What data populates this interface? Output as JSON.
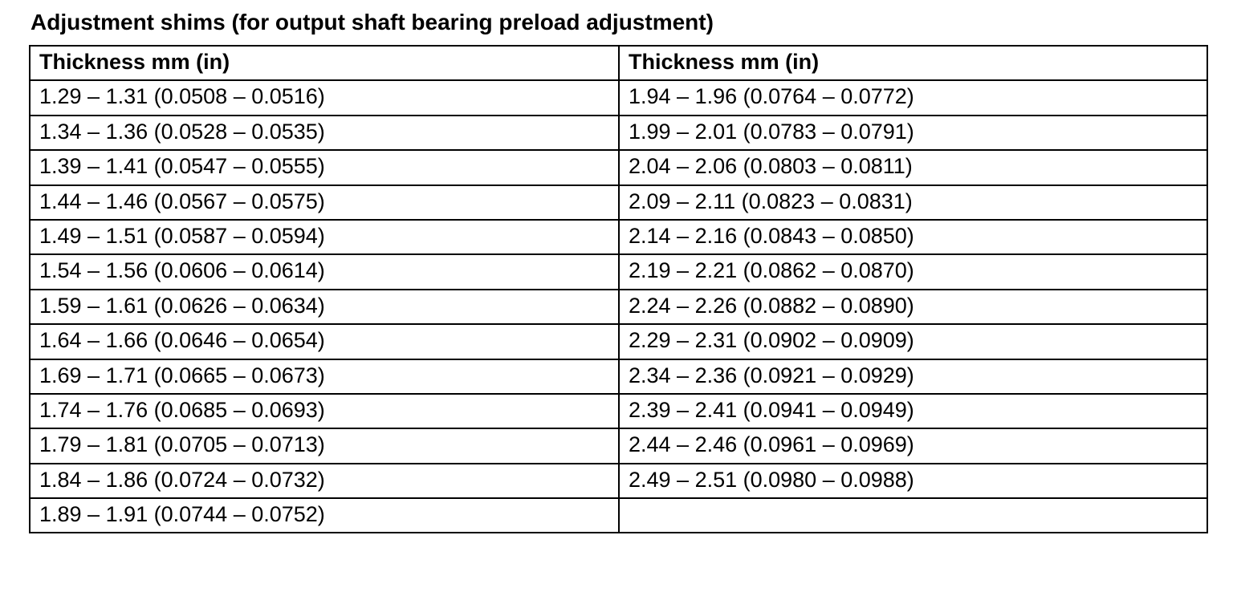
{
  "title": "Adjustment shims (for output shaft bearing preload adjustment)",
  "table": {
    "headers": [
      "Thickness mm (in)",
      "Thickness mm (in)"
    ],
    "rows": [
      [
        "1.29 – 1.31 (0.0508 – 0.0516)",
        "1.94 – 1.96 (0.0764 – 0.0772)"
      ],
      [
        "1.34 – 1.36 (0.0528 – 0.0535)",
        "1.99 – 2.01 (0.0783 – 0.0791)"
      ],
      [
        "1.39 – 1.41 (0.0547 – 0.0555)",
        "2.04 – 2.06 (0.0803 – 0.0811)"
      ],
      [
        "1.44 – 1.46 (0.0567 – 0.0575)",
        "2.09 – 2.11 (0.0823 – 0.0831)"
      ],
      [
        "1.49 – 1.51 (0.0587 – 0.0594)",
        "2.14 – 2.16 (0.0843 – 0.0850)"
      ],
      [
        "1.54 – 1.56 (0.0606 – 0.0614)",
        "2.19 – 2.21 (0.0862 – 0.0870)"
      ],
      [
        "1.59 – 1.61 (0.0626 – 0.0634)",
        "2.24 – 2.26 (0.0882 – 0.0890)"
      ],
      [
        "1.64 – 1.66 (0.0646 – 0.0654)",
        "2.29 – 2.31 (0.0902 – 0.0909)"
      ],
      [
        "1.69 – 1.71 (0.0665 – 0.0673)",
        "2.34 – 2.36 (0.0921 – 0.0929)"
      ],
      [
        "1.74 – 1.76 (0.0685 – 0.0693)",
        "2.39 – 2.41 (0.0941 – 0.0949)"
      ],
      [
        "1.79 – 1.81 (0.0705 – 0.0713)",
        "2.44 – 2.46 (0.0961 – 0.0969)"
      ],
      [
        "1.84 – 1.86 (0.0724 – 0.0732)",
        "2.49 – 2.51 (0.0980 – 0.0988)"
      ],
      [
        "1.89 – 1.91 (0.0744 – 0.0752)",
        ""
      ]
    ]
  }
}
